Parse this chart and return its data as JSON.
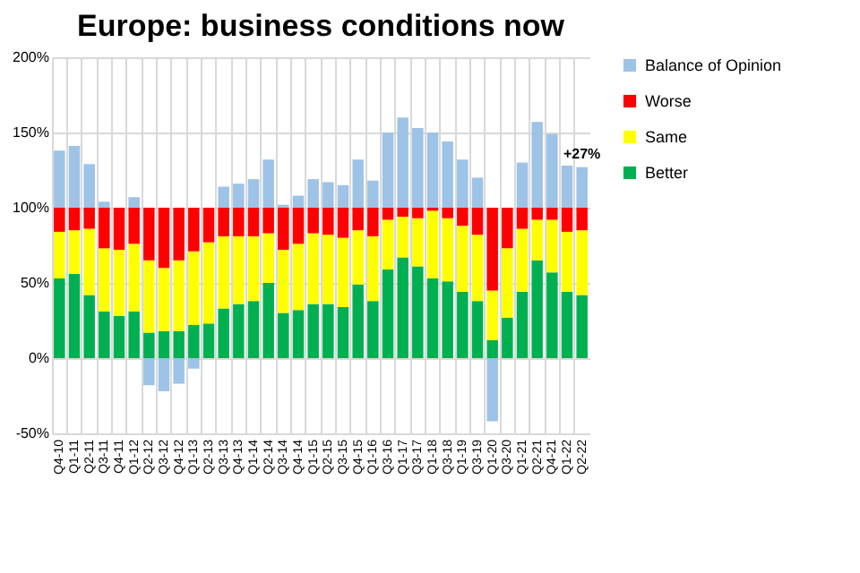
{
  "chart_data": {
    "type": "bar",
    "title": "Europe: business conditions now",
    "stacked": true,
    "grid": true,
    "legend": "right",
    "categories": [
      "Q4-10",
      "Q1-11",
      "Q2-11",
      "Q3-11",
      "Q4-11",
      "Q1-12",
      "Q2-12",
      "Q3-12",
      "Q4-12",
      "Q1-13",
      "Q2-13",
      "Q3-13",
      "Q4-13",
      "Q1-14",
      "Q2-14",
      "Q3-14",
      "Q4-14",
      "Q1-15",
      "Q2-15",
      "Q3-15",
      "Q4-15",
      "Q1-16",
      "Q3-16",
      "Q1-17",
      "Q3-17",
      "Q1-18",
      "Q3-18",
      "Q1-19",
      "Q3-19",
      "Q1-20",
      "Q3-20",
      "Q1-21",
      "Q2-21",
      "Q4-21",
      "Q1-22",
      "Q2-22"
    ],
    "series": [
      {
        "name": "Better",
        "color": "#00b050",
        "values": [
          53,
          56,
          42,
          31,
          28,
          31,
          17,
          18,
          18,
          22,
          23,
          33,
          36,
          38,
          50,
          30,
          32,
          36,
          36,
          34,
          49,
          38,
          59,
          67,
          61,
          53,
          51,
          44,
          38,
          12,
          27,
          44,
          65,
          57,
          44,
          42
        ]
      },
      {
        "name": "Same",
        "color": "#ffff00",
        "values": [
          31,
          29,
          44,
          42,
          44,
          45,
          48,
          42,
          47,
          49,
          54,
          48,
          45,
          43,
          33,
          42,
          44,
          47,
          46,
          46,
          36,
          43,
          33,
          27,
          32,
          45,
          42,
          44,
          44,
          33,
          46,
          42,
          27,
          35,
          40,
          43
        ]
      },
      {
        "name": "Worse",
        "color": "#ff0000",
        "values": [
          16,
          15,
          14,
          27,
          28,
          24,
          35,
          40,
          35,
          29,
          23,
          19,
          19,
          19,
          17,
          28,
          24,
          17,
          18,
          20,
          15,
          19,
          8,
          6,
          7,
          2,
          7,
          12,
          18,
          55,
          27,
          14,
          8,
          8,
          16,
          15
        ]
      },
      {
        "name": "Balance of Opinion",
        "color": "#9dc3e6",
        "values": [
          38,
          41,
          29,
          4,
          0,
          7,
          -18,
          -22,
          -17,
          -7,
          0,
          14,
          16,
          19,
          32,
          2,
          8,
          19,
          17,
          15,
          32,
          18,
          50,
          60,
          53,
          50,
          44,
          32,
          20,
          -42,
          0,
          30,
          57,
          49,
          28,
          27
        ]
      }
    ],
    "ylim": [
      -50,
      200
    ],
    "yticks": [
      {
        "value": -50,
        "label": "-50%"
      },
      {
        "value": 0,
        "label": "0%"
      },
      {
        "value": 50,
        "label": "50%"
      },
      {
        "value": 100,
        "label": "100%"
      },
      {
        "value": 150,
        "label": "150%"
      },
      {
        "value": 200,
        "label": "200%"
      }
    ],
    "annotations": [
      {
        "text": "+27%",
        "x": "Q2-22",
        "y": 127
      }
    ]
  }
}
